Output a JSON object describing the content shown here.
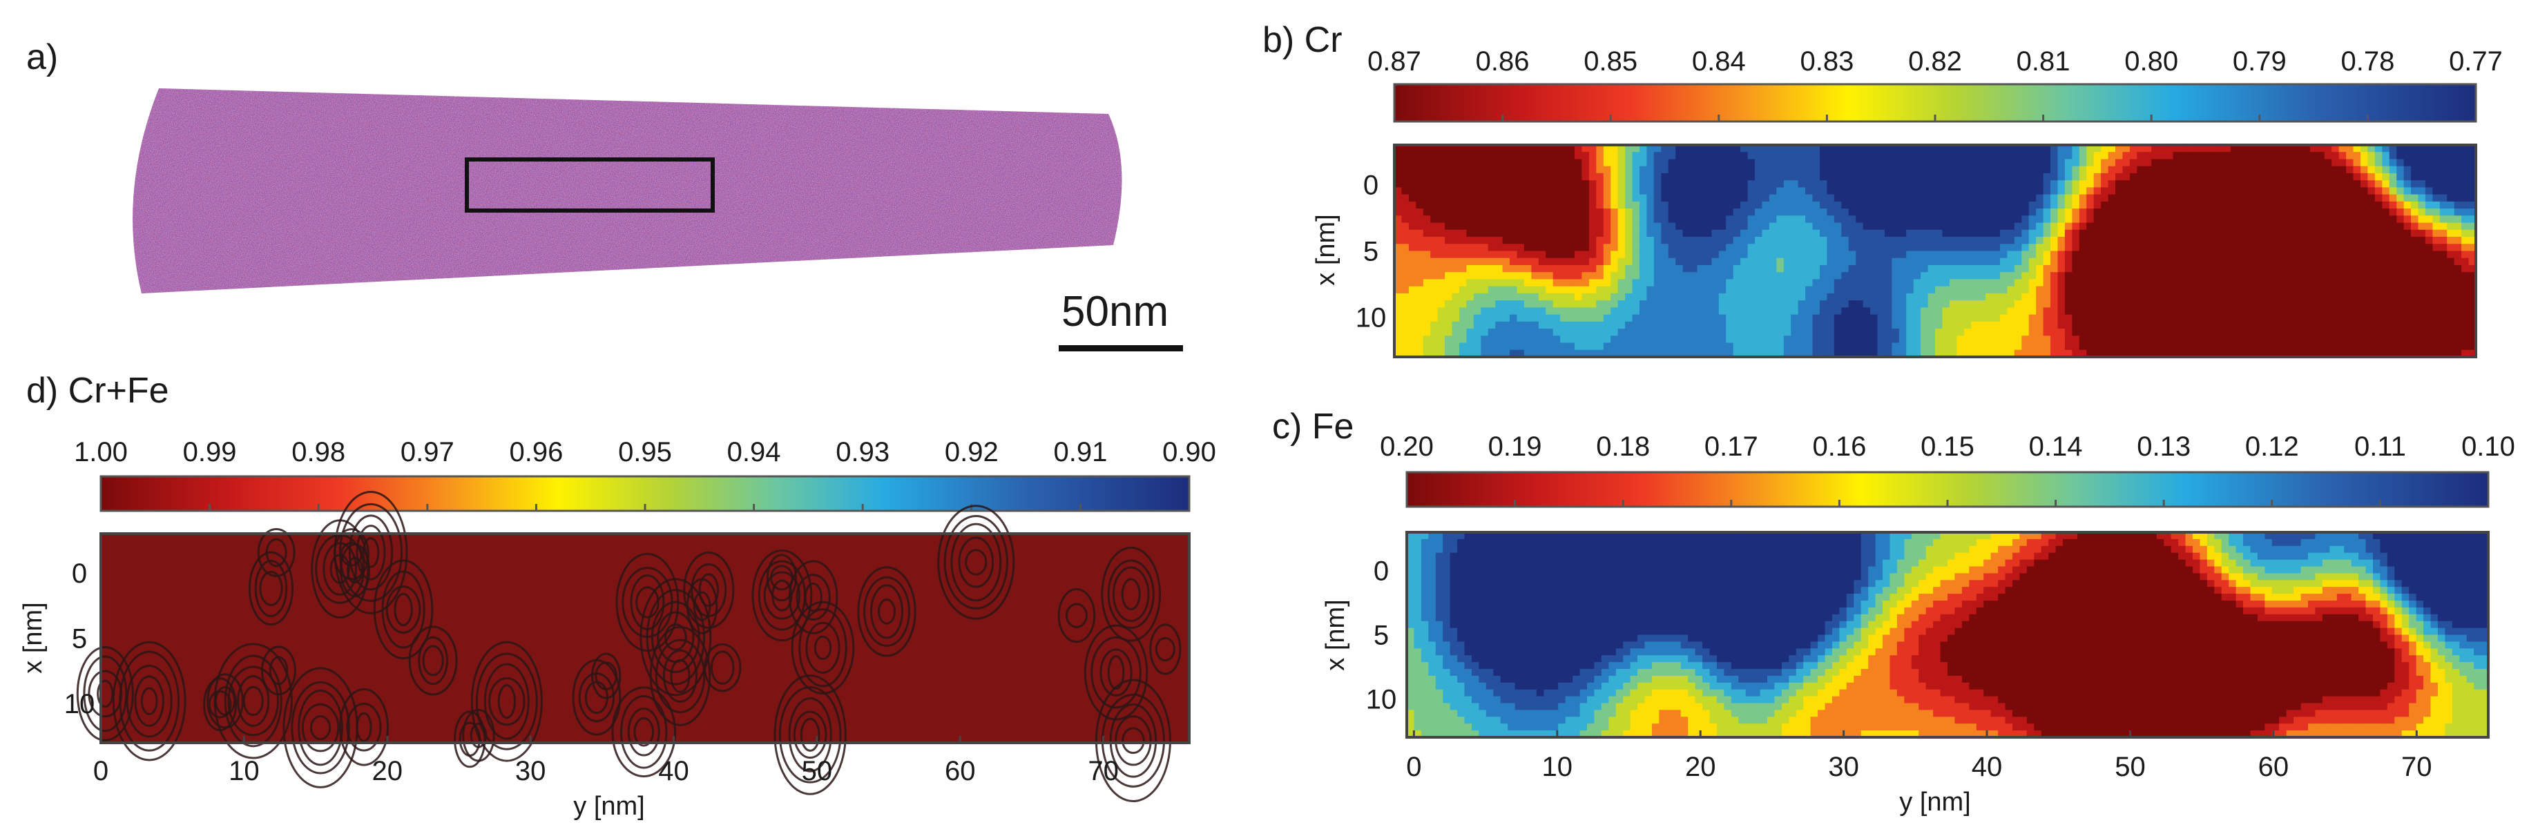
{
  "figure": {
    "panels": {
      "a": {
        "label": "a)",
        "scale_bar": "50nm"
      },
      "b": {
        "label": "b) Cr"
      },
      "c": {
        "label": "c) Fe"
      },
      "d": {
        "label": "d) Cr+Fe"
      }
    }
  },
  "chart_data": [
    {
      "id": "b",
      "type": "heatmap",
      "title": "b) Cr",
      "colorbar": {
        "ticks": [
          "0.87",
          "0.86",
          "0.85",
          "0.84",
          "0.83",
          "0.82",
          "0.81",
          "0.80",
          "0.79",
          "0.78",
          "0.77"
        ],
        "range": [
          0.87,
          0.77
        ]
      },
      "ylabel": "x [nm]",
      "xlabel": "",
      "yticks": [
        "0",
        "5",
        "10"
      ],
      "xticks": [],
      "xlim": [
        0,
        75
      ],
      "ylim": [
        -3,
        13
      ],
      "style": "contour-filled",
      "seed": 7,
      "mean": 0.82
    },
    {
      "id": "c",
      "type": "heatmap",
      "title": "c) Fe",
      "colorbar": {
        "ticks": [
          "0.20",
          "0.19",
          "0.18",
          "0.17",
          "0.16",
          "0.15",
          "0.14",
          "0.13",
          "0.12",
          "0.11",
          "0.10"
        ],
        "range": [
          0.2,
          0.1
        ]
      },
      "ylabel": "x [nm]",
      "xlabel": "y [nm]",
      "yticks": [
        "0",
        "5",
        "10"
      ],
      "xticks": [
        "0",
        "10",
        "20",
        "30",
        "40",
        "50",
        "60",
        "70"
      ],
      "xlim": [
        -0.5,
        75
      ],
      "ylim": [
        -3,
        13
      ],
      "style": "contour-filled",
      "seed": 19,
      "mean": 0.16
    },
    {
      "id": "d",
      "type": "heatmap",
      "title": "d) Cr+Fe",
      "colorbar": {
        "ticks": [
          "1.00",
          "0.99",
          "0.98",
          "0.97",
          "0.96",
          "0.95",
          "0.94",
          "0.93",
          "0.92",
          "0.91",
          "0.90"
        ],
        "range": [
          1.0,
          0.9
        ]
      },
      "ylabel": "x [nm]",
      "xlabel": "y [nm]",
      "yticks": [
        "0",
        "5",
        "10"
      ],
      "xticks": [
        "0",
        "10",
        "20",
        "30",
        "40",
        "50",
        "60",
        "70"
      ],
      "xlim": [
        0,
        76
      ],
      "ylim": [
        -3,
        13
      ],
      "style": "uniform-with-contours",
      "seed": 31,
      "mean": 0.999
    }
  ]
}
